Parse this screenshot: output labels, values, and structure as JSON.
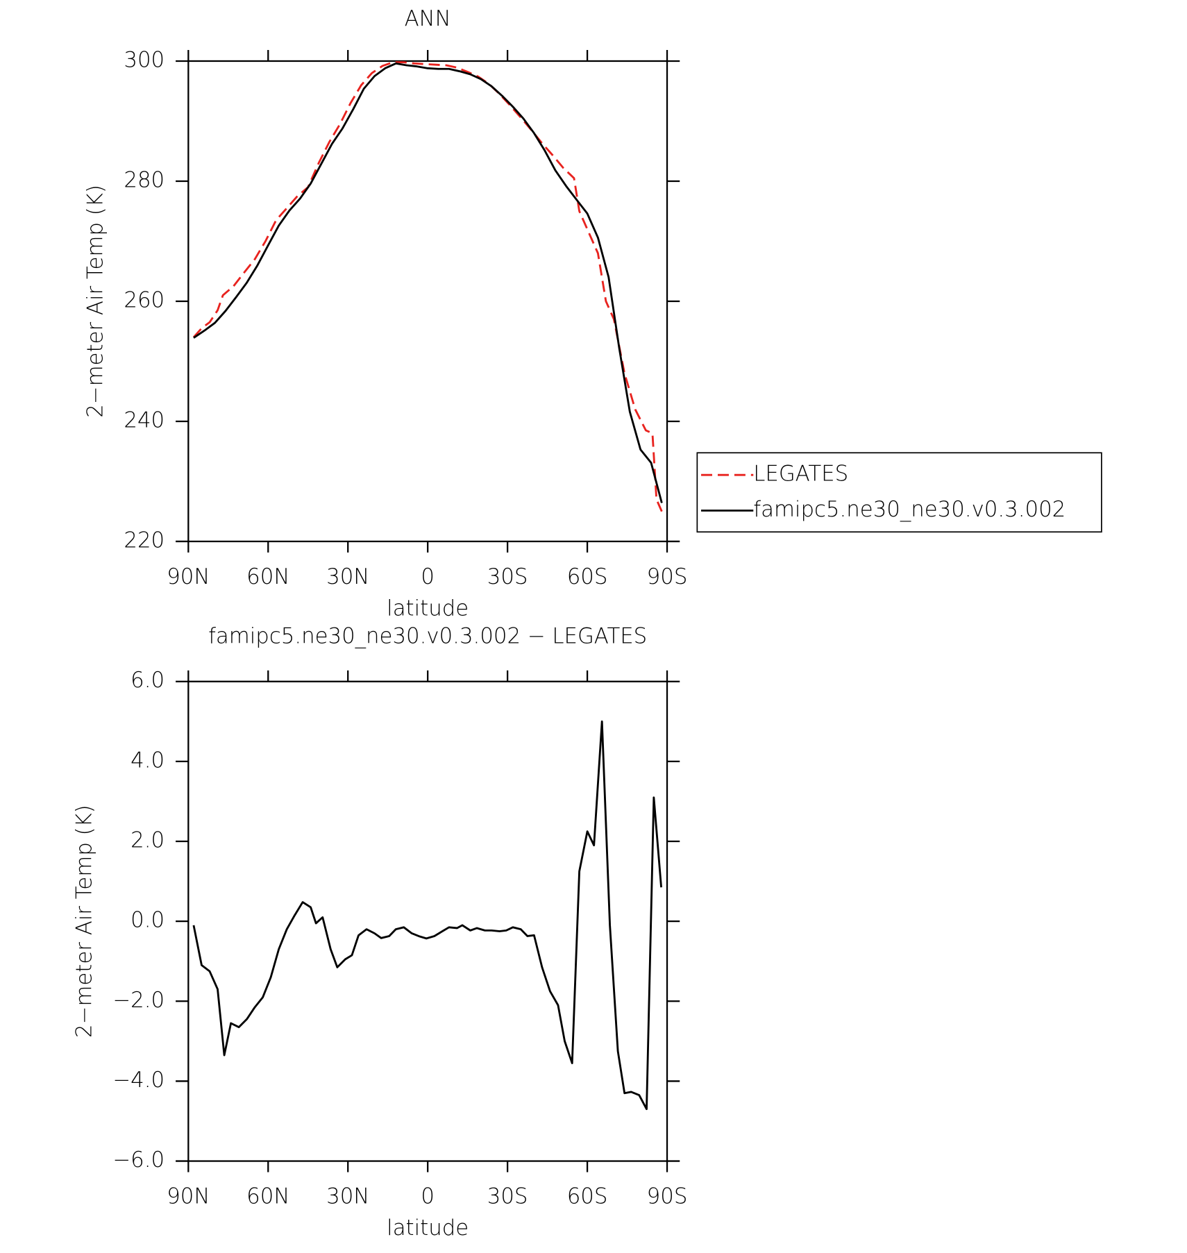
{
  "chart_data": [
    {
      "type": "line",
      "title": "ANN",
      "xlabel": "latitude",
      "ylabel": "2−meter Air Temp (K)",
      "xlim": [
        90,
        -90
      ],
      "ylim": [
        220,
        300
      ],
      "xticks": [
        {
          "value": 90,
          "label": "90N"
        },
        {
          "value": 60,
          "label": "60N"
        },
        {
          "value": 30,
          "label": "30N"
        },
        0,
        {
          "value": -30,
          "label": "30S"
        },
        {
          "value": -60,
          "label": "60S"
        },
        {
          "value": -90,
          "label": "90S"
        }
      ],
      "yticks": [
        220,
        240,
        260,
        280,
        300
      ],
      "legend": "outside-right",
      "series": [
        {
          "name": "LEGATES",
          "color": "#e8231f",
          "dashed": true,
          "x": [
            88,
            85,
            82,
            79,
            77,
            73,
            69,
            65,
            61,
            57,
            53,
            49,
            45,
            41,
            37,
            33,
            29,
            25,
            21,
            17,
            13,
            9,
            5,
            1,
            -3,
            -7,
            -11,
            -15,
            -19,
            -23,
            -27,
            -31,
            -35,
            -39,
            -43,
            -47,
            -51,
            -55,
            -57,
            -61,
            -64,
            -67,
            -70,
            -74,
            -78,
            -82,
            -84.5,
            -86,
            -88
          ],
          "values": [
            254,
            255.5,
            256.5,
            258.5,
            261,
            262.5,
            264.8,
            267,
            270,
            273.5,
            275.5,
            277.5,
            279,
            283,
            286.5,
            289.5,
            293,
            296,
            298,
            299.2,
            299.8,
            299.8,
            299.6,
            299.5,
            299.4,
            299.3,
            298.9,
            298.2,
            297.4,
            296.2,
            294.5,
            292.6,
            290.6,
            288.5,
            286.3,
            284.3,
            282.2,
            280.5,
            275,
            271,
            268,
            260,
            257,
            248,
            242,
            238.5,
            238,
            227,
            225
          ]
        },
        {
          "name": "famipc5.ne30_ne30.v0.3.002",
          "color": "#000000",
          "dashed": false,
          "x": [
            88,
            84,
            80,
            76,
            72,
            68,
            64,
            60,
            56,
            52,
            48,
            44,
            40,
            36,
            32,
            28,
            24,
            20,
            16,
            12,
            8,
            4,
            0,
            -4,
            -8,
            -12,
            -16,
            -20,
            -24,
            -28,
            -32,
            -36,
            -40,
            -44,
            -48,
            -52,
            -56,
            -60,
            -64,
            -68,
            -72,
            -76,
            -80,
            -84,
            -88
          ],
          "values": [
            253.9,
            255.1,
            256.4,
            258.4,
            260.7,
            263.1,
            266,
            269.3,
            272.6,
            275.1,
            277.1,
            279.6,
            282.9,
            286.2,
            288.8,
            292,
            295.4,
            297.5,
            298.8,
            299.6,
            299.3,
            299.1,
            298.8,
            298.7,
            298.7,
            298.3,
            297.8,
            297,
            295.8,
            294.2,
            292.4,
            290.4,
            288,
            285.1,
            281.8,
            279.2,
            276.9,
            274.6,
            270.6,
            264,
            252.2,
            241.6,
            235.3,
            233.1,
            226.4
          ]
        }
      ]
    },
    {
      "type": "line",
      "title": "famipc5.ne30_ne30.v0.3.002 − LEGATES",
      "xlabel": "latitude",
      "ylabel": "2−meter Air Temp (K)",
      "xlim": [
        90,
        -90
      ],
      "ylim": [
        -6,
        6
      ],
      "xticks": [
        {
          "value": 90,
          "label": "90N"
        },
        {
          "value": 60,
          "label": "60N"
        },
        {
          "value": 30,
          "label": "30N"
        },
        0,
        {
          "value": -30,
          "label": "30S"
        },
        {
          "value": -60,
          "label": "60S"
        },
        {
          "value": -90,
          "label": "90S"
        }
      ],
      "yticks": [
        {
          "value": -6,
          "label": "−6.0"
        },
        {
          "value": -4,
          "label": "−4.0"
        },
        {
          "value": -2,
          "label": "−2.0"
        },
        {
          "value": 0,
          "label": "0.0"
        },
        {
          "value": 2,
          "label": "2.0"
        },
        {
          "value": 4,
          "label": "4.0"
        },
        {
          "value": 6,
          "label": "6.0"
        }
      ],
      "color": "#000000",
      "x": [
        88,
        85,
        82,
        79,
        76.5,
        74,
        71,
        68,
        65,
        62,
        59,
        56,
        53,
        50,
        47,
        44,
        42,
        39.5,
        36.5,
        34,
        31,
        28.5,
        26,
        23,
        20,
        17.5,
        14.5,
        12,
        9,
        6,
        3,
        0.5,
        -2.5,
        -5.5,
        -8,
        -11,
        -13,
        -16,
        -18.5,
        -21.5,
        -24,
        -27,
        -29.5,
        -32,
        -35,
        -37.5,
        -40,
        -43,
        -46,
        -49,
        -51.5,
        -54.3,
        -57,
        -60,
        -62.5,
        -65.5,
        -68.5,
        -71.5,
        -74,
        -76.5,
        -79.5,
        -82.3,
        -85,
        -87.8
      ],
      "values": [
        -0.1,
        -1.1,
        -1.25,
        -1.7,
        -3.35,
        -2.55,
        -2.65,
        -2.45,
        -2.15,
        -1.9,
        -1.4,
        -0.7,
        -0.2,
        0.15,
        0.48,
        0.35,
        -0.05,
        0.1,
        -0.7,
        -1.15,
        -0.95,
        -0.85,
        -0.35,
        -0.2,
        -0.3,
        -0.42,
        -0.37,
        -0.2,
        -0.15,
        -0.3,
        -0.38,
        -0.43,
        -0.37,
        -0.25,
        -0.15,
        -0.17,
        -0.1,
        -0.23,
        -0.17,
        -0.23,
        -0.23,
        -0.25,
        -0.23,
        -0.15,
        -0.2,
        -0.37,
        -0.35,
        -1.15,
        -1.75,
        -2.1,
        -3.0,
        -3.55,
        1.25,
        2.25,
        1.9,
        5.0,
        -0.1,
        -3.25,
        -4.3,
        -4.27,
        -4.35,
        -4.7,
        3.1,
        0.85
      ]
    }
  ]
}
